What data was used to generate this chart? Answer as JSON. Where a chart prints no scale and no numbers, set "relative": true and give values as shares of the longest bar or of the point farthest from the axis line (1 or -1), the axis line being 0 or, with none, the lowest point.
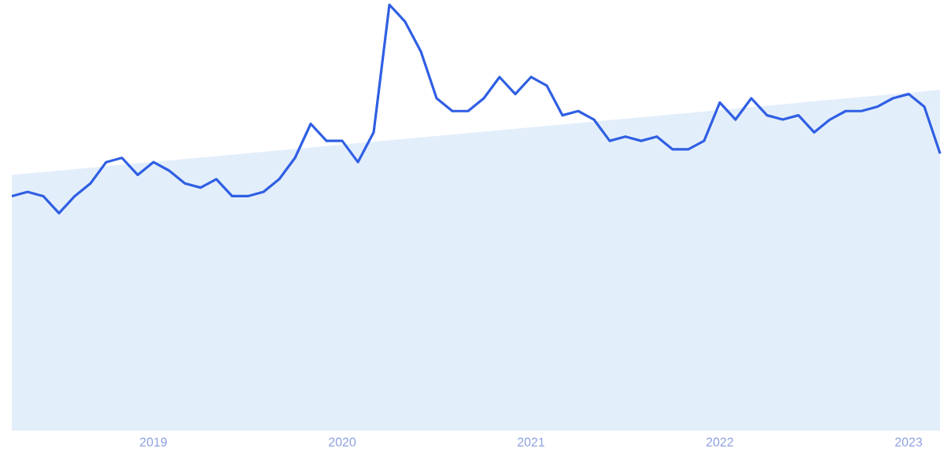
{
  "chart_data": {
    "type": "line",
    "relative": true,
    "tick_labels": "x",
    "xlim": [
      "2018-04",
      "2023-03"
    ],
    "xticks": [
      "2019",
      "2020",
      "2021",
      "2022",
      "2023"
    ],
    "series": [
      {
        "type": "area",
        "color": "#e3eefb",
        "x": [
          "2018-04",
          "2023-03"
        ],
        "values": [
          0.6,
          0.8
        ]
      },
      {
        "color": "#2f5fe3",
        "x": [
          "2018-04",
          "2018-05",
          "2018-06",
          "2018-07",
          "2018-08",
          "2018-09",
          "2018-10",
          "2018-11",
          "2018-12",
          "2019-01",
          "2019-02",
          "2019-03",
          "2019-04",
          "2019-05",
          "2019-06",
          "2019-07",
          "2019-08",
          "2019-09",
          "2019-10",
          "2019-11",
          "2019-12",
          "2020-01",
          "2020-02",
          "2020-03",
          "2020-04",
          "2020-05",
          "2020-06",
          "2020-07",
          "2020-08",
          "2020-09",
          "2020-10",
          "2020-11",
          "2020-12",
          "2021-01",
          "2021-02",
          "2021-03",
          "2021-04",
          "2021-05",
          "2021-06",
          "2021-07",
          "2021-08",
          "2021-09",
          "2021-10",
          "2021-11",
          "2021-12",
          "2022-01",
          "2022-02",
          "2022-03",
          "2022-04",
          "2022-05",
          "2022-06",
          "2022-07",
          "2022-08",
          "2022-09",
          "2022-10",
          "2022-11",
          "2022-12",
          "2023-01",
          "2023-02",
          "2023-03"
        ],
        "values": [
          0.55,
          0.56,
          0.55,
          0.51,
          0.55,
          0.58,
          0.63,
          0.64,
          0.6,
          0.63,
          0.61,
          0.58,
          0.57,
          0.59,
          0.55,
          0.55,
          0.56,
          0.59,
          0.64,
          0.72,
          0.68,
          0.68,
          0.63,
          0.7,
          1.0,
          0.96,
          0.89,
          0.78,
          0.75,
          0.75,
          0.78,
          0.83,
          0.79,
          0.83,
          0.81,
          0.74,
          0.75,
          0.73,
          0.68,
          0.69,
          0.68,
          0.69,
          0.66,
          0.66,
          0.68,
          0.77,
          0.73,
          0.78,
          0.74,
          0.73,
          0.74,
          0.7,
          0.73,
          0.75,
          0.75,
          0.76,
          0.78,
          0.79,
          0.76,
          0.65
        ]
      }
    ]
  }
}
